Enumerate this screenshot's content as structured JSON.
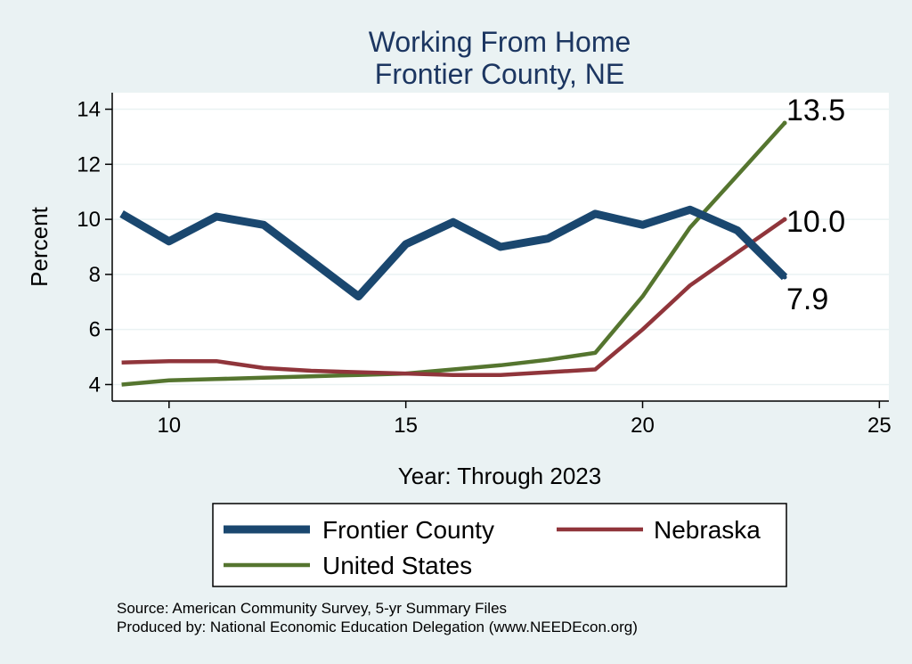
{
  "chart_data": {
    "type": "line",
    "title": [
      "Working From Home",
      "Frontier County, NE"
    ],
    "xlabel": "Year: Through 2023",
    "ylabel": "Percent",
    "xlim": [
      8.8,
      25.2
    ],
    "ylim": [
      3.4,
      14.6
    ],
    "xticks": [
      10,
      15,
      20,
      25
    ],
    "yticks": [
      4,
      6,
      8,
      10,
      12,
      14
    ],
    "grid": true,
    "series": [
      {
        "name": "Frontier County",
        "color": "#1a476f",
        "x": [
          9,
          10,
          11,
          12,
          13,
          14,
          15,
          16,
          17,
          18,
          19,
          20,
          21,
          22,
          23
        ],
        "y": [
          10.2,
          9.2,
          10.1,
          9.8,
          8.5,
          7.2,
          9.1,
          9.9,
          9.0,
          9.3,
          10.2,
          9.8,
          10.35,
          9.6,
          7.9
        ]
      },
      {
        "name": "Nebraska",
        "color": "#90353b",
        "x": [
          9,
          10,
          11,
          12,
          13,
          14,
          15,
          16,
          17,
          18,
          19,
          20,
          21,
          22,
          23
        ],
        "y": [
          4.8,
          4.85,
          4.85,
          4.6,
          4.5,
          4.45,
          4.4,
          4.35,
          4.35,
          4.45,
          4.55,
          6.0,
          7.6,
          8.8,
          10.0
        ]
      },
      {
        "name": "United States",
        "color": "#55752f",
        "x": [
          9,
          10,
          11,
          12,
          13,
          14,
          15,
          16,
          17,
          18,
          19,
          20,
          21,
          22,
          23
        ],
        "y": [
          4.0,
          4.15,
          4.2,
          4.25,
          4.3,
          4.35,
          4.4,
          4.55,
          4.7,
          4.9,
          5.15,
          7.2,
          9.7,
          11.6,
          13.5
        ]
      }
    ],
    "end_labels": [
      {
        "series": "United States",
        "text": "13.5",
        "y": 13.5
      },
      {
        "series": "Nebraska",
        "text": "10.0",
        "y": 10.0
      },
      {
        "series": "Frontier County",
        "text": "7.9",
        "y": 7.9
      }
    ],
    "legend": {
      "placement": "bottom",
      "entries": [
        "Frontier County",
        "Nebraska",
        "United States"
      ]
    },
    "notes": [
      "Source: American Community Survey, 5-yr Summary Files",
      "Produced by: National Economic Education Delegation (www.NEEDEcon.org)"
    ]
  }
}
